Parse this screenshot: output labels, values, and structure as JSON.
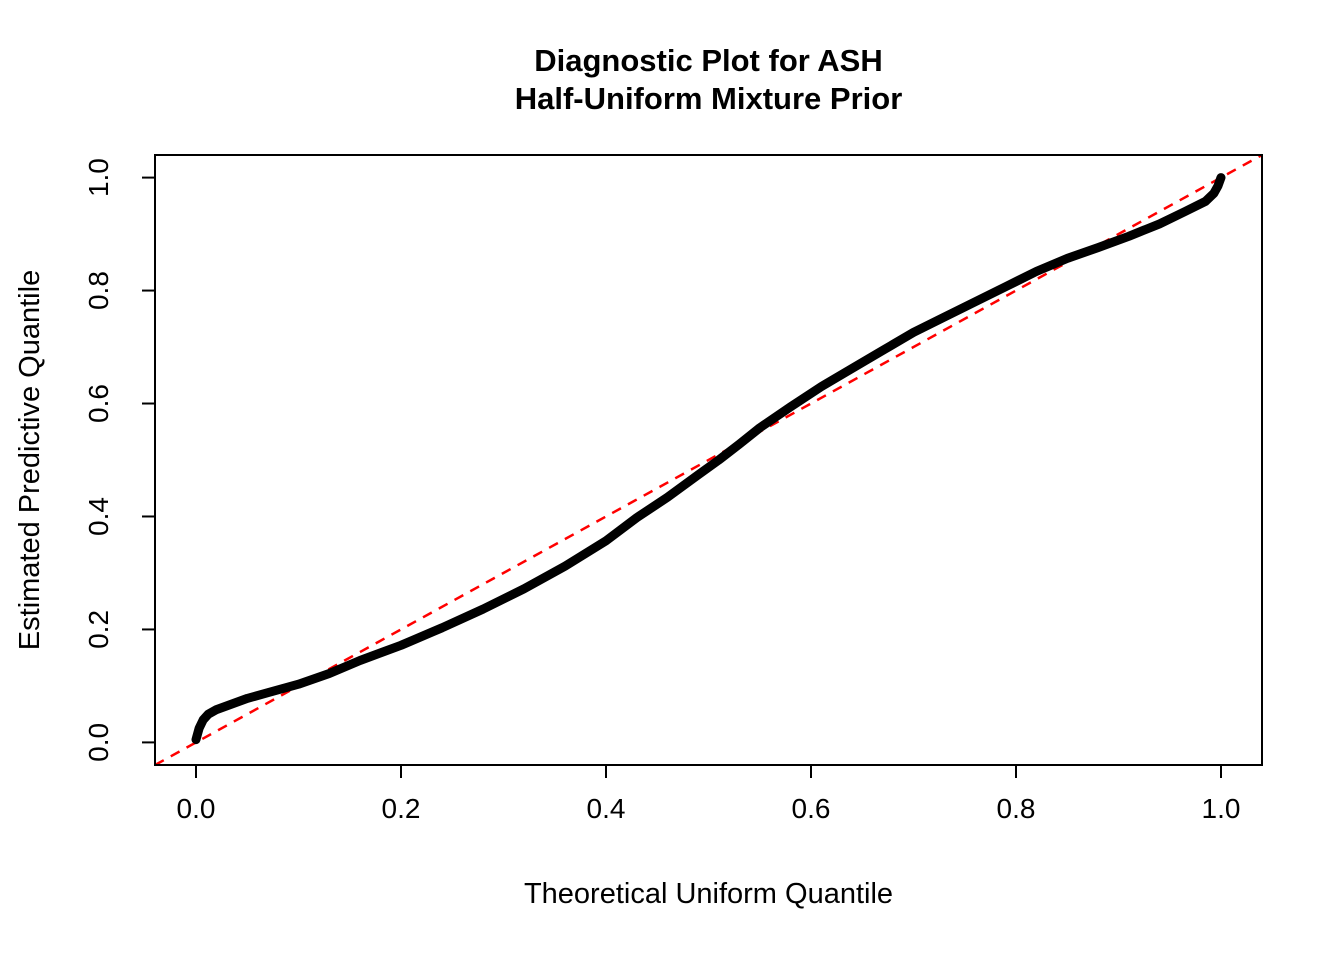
{
  "chart_data": {
    "type": "scatter",
    "title": "Diagnostic Plot for ASH Half-Uniform Mixture Prior",
    "title_lines": [
      "Diagnostic Plot for ASH",
      "Half-Uniform Mixture Prior"
    ],
    "xlabel": "Theoretical Uniform Quantile",
    "ylabel": "Estimated Predictive Quantile",
    "xlim": [
      -0.04,
      1.04
    ],
    "ylim": [
      -0.04,
      1.04
    ],
    "xticks": [
      0.0,
      0.2,
      0.4,
      0.6,
      0.8,
      1.0
    ],
    "yticks": [
      0.0,
      0.2,
      0.4,
      0.6,
      0.8,
      1.0
    ],
    "xtick_labels": [
      "0.0",
      "0.2",
      "0.4",
      "0.6",
      "0.8",
      "1.0"
    ],
    "ytick_labels": [
      "0.0",
      "0.2",
      "0.4",
      "0.6",
      "0.8",
      "1.0"
    ],
    "grid": false,
    "legend": "none",
    "colors": {
      "curve": "#000000",
      "reference": "#FF0000"
    },
    "series": [
      {
        "name": "reference-diagonal",
        "color": "#FF0000",
        "width": 2.5,
        "dash": "10 8",
        "round": false,
        "points": [
          [
            -0.04,
            -0.04
          ],
          [
            1.04,
            1.04
          ]
        ]
      },
      {
        "name": "estimated-predictive-quantiles",
        "color": "#000000",
        "width": 9,
        "dash": "",
        "round": true,
        "points": [
          [
            0.0,
            0.005
          ],
          [
            0.003,
            0.025
          ],
          [
            0.007,
            0.04
          ],
          [
            0.012,
            0.05
          ],
          [
            0.02,
            0.058
          ],
          [
            0.035,
            0.068
          ],
          [
            0.05,
            0.078
          ],
          [
            0.07,
            0.088
          ],
          [
            0.1,
            0.103
          ],
          [
            0.13,
            0.122
          ],
          [
            0.16,
            0.145
          ],
          [
            0.2,
            0.172
          ],
          [
            0.24,
            0.203
          ],
          [
            0.28,
            0.236
          ],
          [
            0.32,
            0.272
          ],
          [
            0.36,
            0.312
          ],
          [
            0.4,
            0.357
          ],
          [
            0.43,
            0.398
          ],
          [
            0.46,
            0.434
          ],
          [
            0.49,
            0.474
          ],
          [
            0.51,
            0.5
          ],
          [
            0.53,
            0.528
          ],
          [
            0.55,
            0.557
          ],
          [
            0.58,
            0.594
          ],
          [
            0.61,
            0.63
          ],
          [
            0.64,
            0.662
          ],
          [
            0.67,
            0.694
          ],
          [
            0.7,
            0.726
          ],
          [
            0.73,
            0.753
          ],
          [
            0.76,
            0.78
          ],
          [
            0.79,
            0.807
          ],
          [
            0.82,
            0.834
          ],
          [
            0.85,
            0.857
          ],
          [
            0.88,
            0.876
          ],
          [
            0.91,
            0.896
          ],
          [
            0.94,
            0.918
          ],
          [
            0.965,
            0.94
          ],
          [
            0.985,
            0.958
          ],
          [
            0.993,
            0.972
          ],
          [
            0.997,
            0.985
          ],
          [
            1.0,
            1.0
          ]
        ]
      }
    ]
  }
}
